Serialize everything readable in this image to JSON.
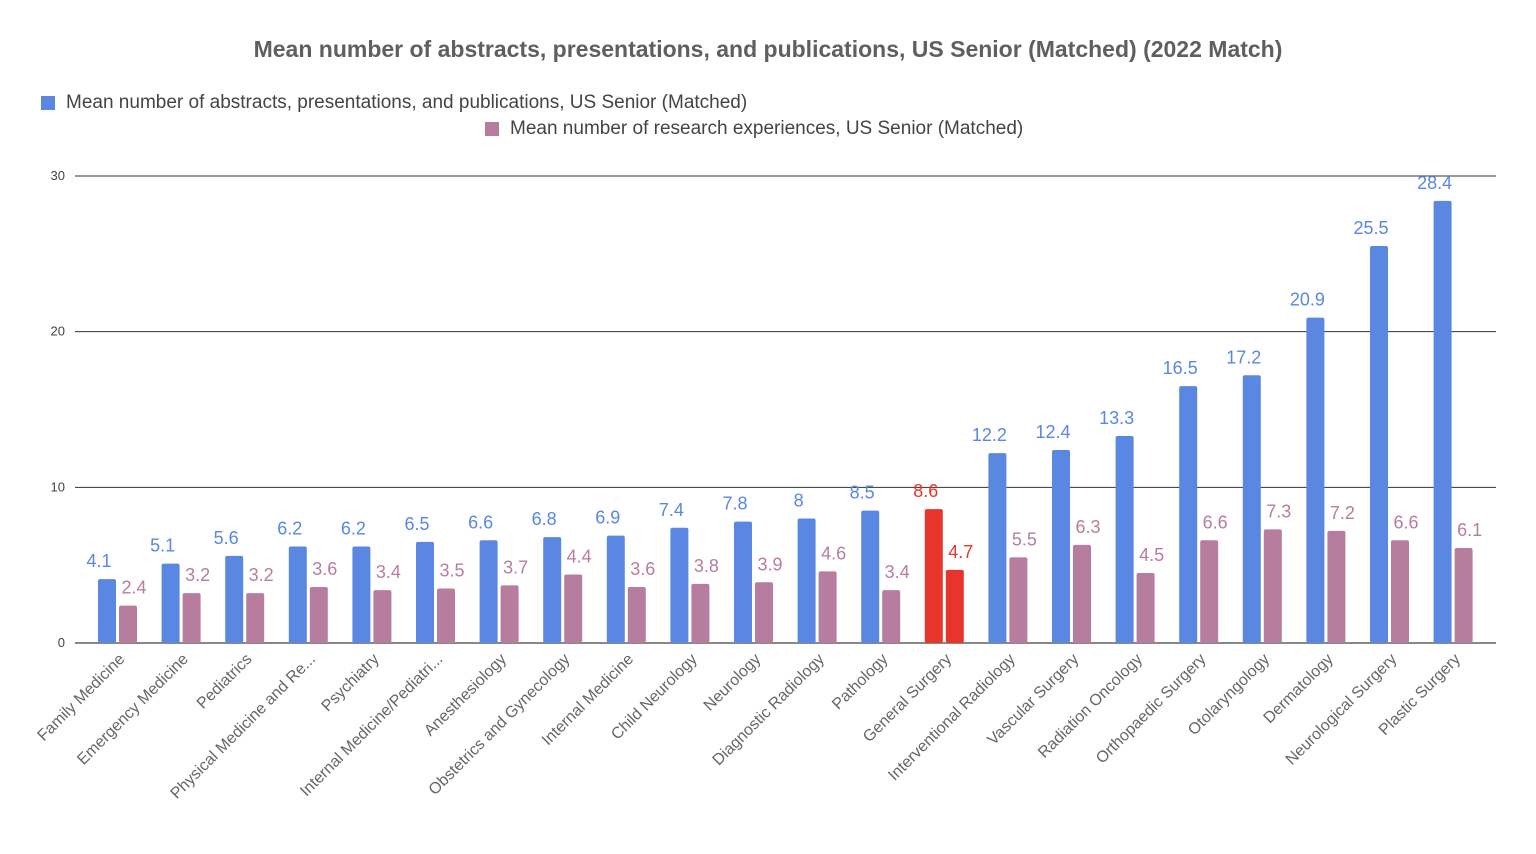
{
  "chart_data": {
    "type": "bar",
    "title": "Mean number of abstracts, presentations, and publications, US Senior (Matched) (2022 Match)",
    "xlabel": "",
    "ylabel": "",
    "ylim": [
      0,
      30
    ],
    "yticks": [
      "0",
      "10",
      "20",
      "30"
    ],
    "grid": true,
    "legend": "top-left",
    "categories": [
      "Family Medicine",
      "Emergency Medicine",
      "Pediatrics",
      "Physical Medicine and Re...",
      "Psychiatry",
      "Internal Medicine/Pediatri...",
      "Anesthesiology",
      "Obstetrics and Gynecology",
      "Internal Medicine",
      "Child Neurology",
      "Neurology",
      "Diagnostic Radiology",
      "Pathology",
      "General Surgery",
      "Interventional Radiology",
      "Vascular Surgery",
      "Radiation Oncology",
      "Orthopaedic Surgery",
      "Otolaryngology",
      "Dermatology",
      "Neurological Surgery",
      "Plastic Surgery"
    ],
    "series": [
      {
        "name": "Mean number of abstracts, presentations, and publications, US Senior (Matched)",
        "color": "#5a87e2",
        "values": [
          4.1,
          5.1,
          5.6,
          6.2,
          6.2,
          6.5,
          6.6,
          6.8,
          6.9,
          7.4,
          7.8,
          8,
          8.5,
          8.6,
          12.2,
          12.4,
          13.3,
          16.5,
          17.2,
          20.9,
          25.5,
          28.4
        ]
      },
      {
        "name": "Mean number of research experiences, US Senior (Matched)",
        "color": "#b77d9e",
        "values": [
          2.4,
          3.2,
          3.2,
          3.6,
          3.4,
          3.5,
          3.7,
          4.4,
          3.6,
          3.8,
          3.9,
          4.6,
          3.4,
          4.7,
          5.5,
          6.3,
          4.5,
          6.6,
          7.3,
          7.2,
          6.6,
          6.1
        ]
      }
    ],
    "highlight": {
      "category": "General Surgery",
      "color": "#e8352b"
    }
  }
}
